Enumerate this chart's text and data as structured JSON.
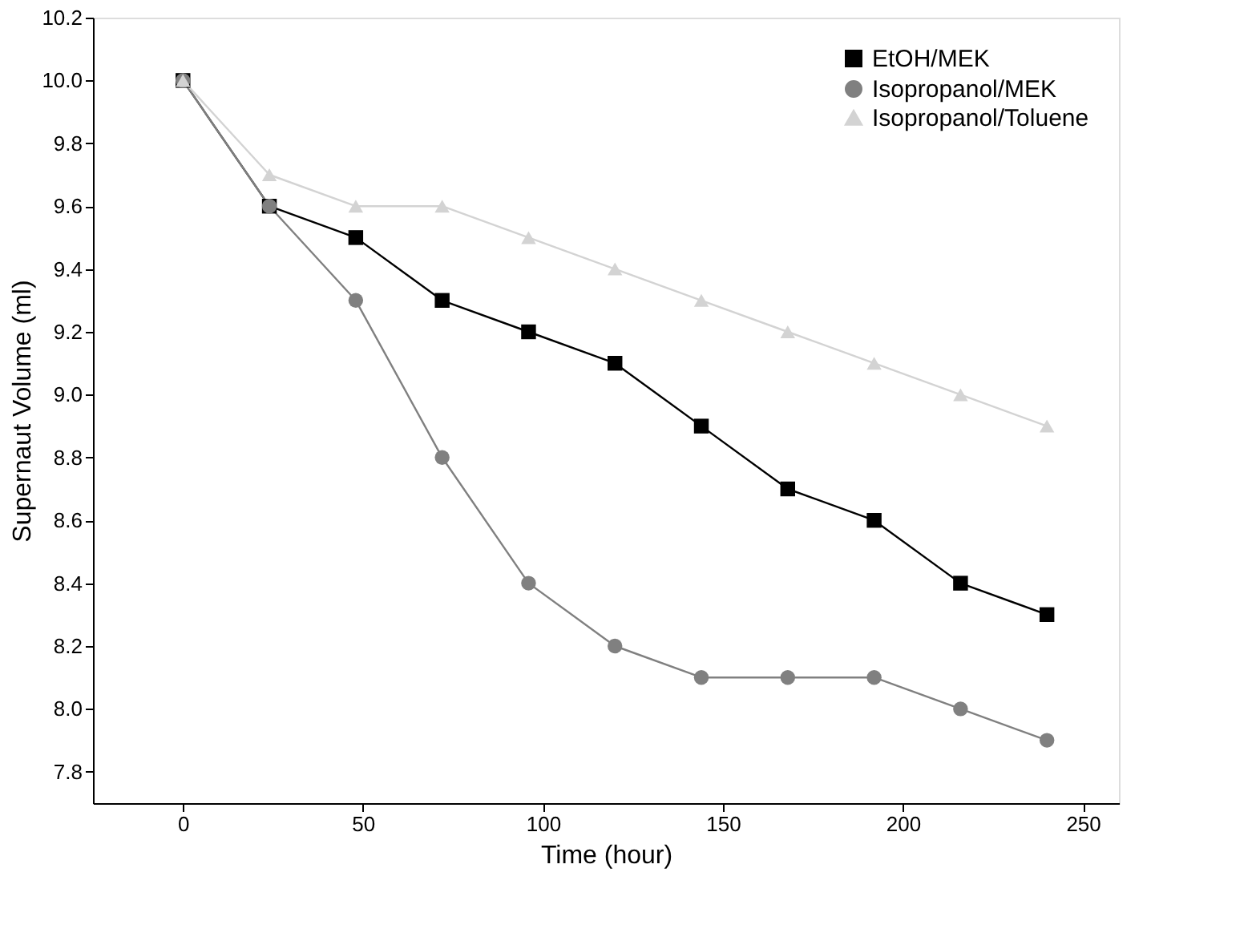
{
  "chart_data": {
    "type": "line",
    "xlabel": "Time (hour)",
    "ylabel": "Supernaut Volume (ml)",
    "x": [
      0,
      24,
      48,
      72,
      96,
      120,
      144,
      168,
      192,
      216,
      240
    ],
    "series": [
      {
        "name": "EtOH/MEK",
        "color": "#000000",
        "marker": "square",
        "values": [
          10.0,
          9.6,
          9.5,
          9.3,
          9.2,
          9.1,
          8.9,
          8.7,
          8.6,
          8.4,
          8.3
        ]
      },
      {
        "name": "Isopropanol/MEK",
        "color": "#808080",
        "marker": "circle",
        "values": [
          10.0,
          9.6,
          9.3,
          8.8,
          8.4,
          8.2,
          8.1,
          8.1,
          8.1,
          8.0,
          7.9
        ]
      },
      {
        "name": "Isopropanol/Toluene",
        "color": "#d3d3d3",
        "marker": "triangle",
        "values": [
          10.0,
          9.7,
          9.6,
          9.6,
          9.5,
          9.4,
          9.3,
          9.2,
          9.1,
          9.0,
          8.9
        ]
      }
    ],
    "xlim": [
      -25,
      260
    ],
    "xticks": [
      0,
      50,
      100,
      150,
      200,
      250
    ],
    "ylim": [
      7.7,
      10.2
    ],
    "yticks": [
      7.8,
      {
        "value": 8,
        "label": "8.0"
      },
      8.2,
      8.4,
      8.6,
      8.8,
      {
        "value": 9,
        "label": "9.0"
      },
      9.2,
      9.4,
      9.6,
      9.8,
      {
        "value": 10,
        "label": "10.0"
      },
      10.2
    ],
    "grid": false,
    "legend": "top right",
    "line_style": "solid"
  }
}
